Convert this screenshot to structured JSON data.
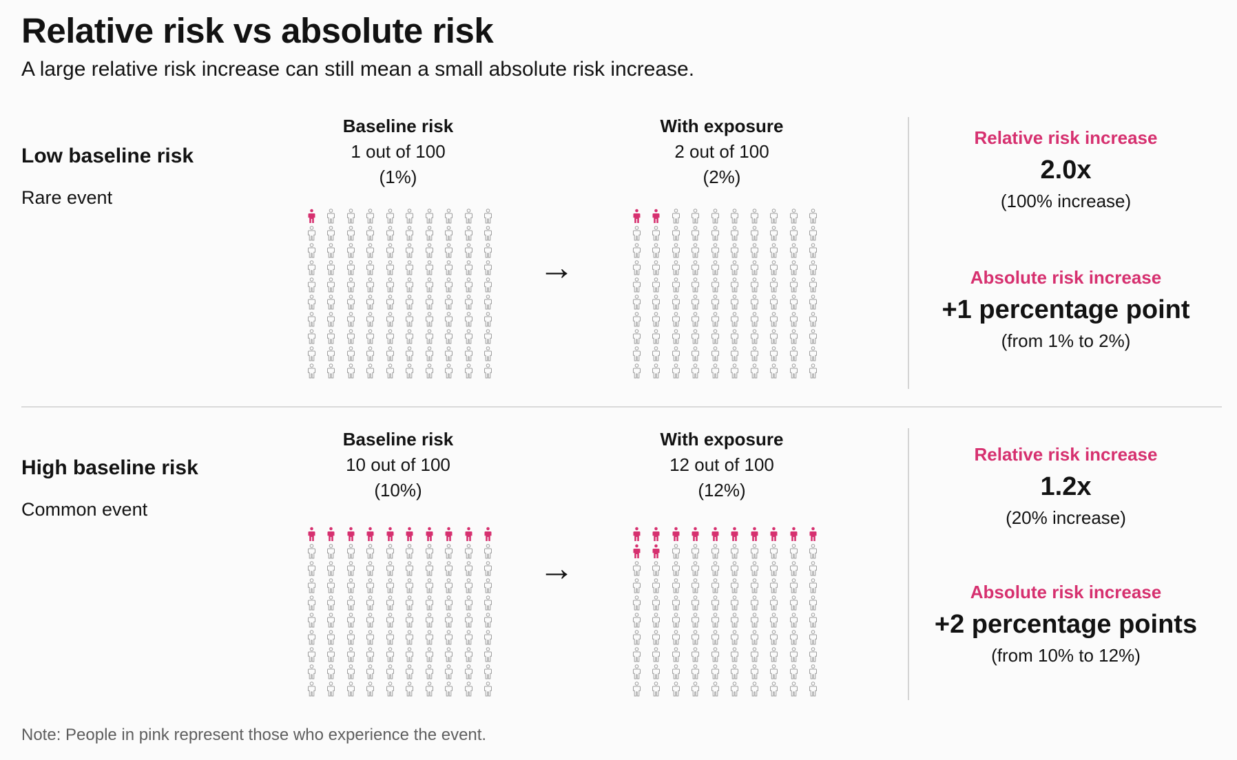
{
  "title": "Relative risk vs absolute risk",
  "subtitle": "A large relative risk increase can still mean a small absolute risk increase.",
  "colors": {
    "highlight": "#d6306f",
    "person": "#9d9d9d",
    "text": "#121212",
    "note": "#5e5e5e",
    "divider": "#d4d4d4"
  },
  "icons": {
    "person": "person-icon",
    "arrow": "arrow-right-icon"
  },
  "arrow_glyph": "→",
  "panels": [
    {
      "label": "Low baseline risk",
      "sublabel": "Rare event",
      "baseline": {
        "heading": "Baseline risk",
        "count_text": "1 out of 100",
        "percent_text": "(1%)",
        "highlighted": 1,
        "total": 100
      },
      "exposure": {
        "heading": "With exposure",
        "count_text": "2 out of 100",
        "percent_text": "(2%)",
        "highlighted": 2,
        "total": 100
      },
      "relative": {
        "heading": "Relative risk increase",
        "value": "2.0x",
        "note": "(100% increase)"
      },
      "absolute": {
        "heading": "Absolute risk increase",
        "value": "+1 percentage point",
        "note": "(from 1% to 2%)"
      }
    },
    {
      "label": "High baseline risk",
      "sublabel": "Common event",
      "baseline": {
        "heading": "Baseline risk",
        "count_text": "10 out of 100",
        "percent_text": "(10%)",
        "highlighted": 10,
        "total": 100
      },
      "exposure": {
        "heading": "With exposure",
        "count_text": "12 out of 100",
        "percent_text": "(12%)",
        "highlighted": 12,
        "total": 100
      },
      "relative": {
        "heading": "Relative risk increase",
        "value": "1.2x",
        "note": "(20% increase)"
      },
      "absolute": {
        "heading": "Absolute risk increase",
        "value": "+2 percentage points",
        "note": "(from 10% to 12%)"
      }
    }
  ],
  "note": "Note: People in pink represent those who experience the event."
}
